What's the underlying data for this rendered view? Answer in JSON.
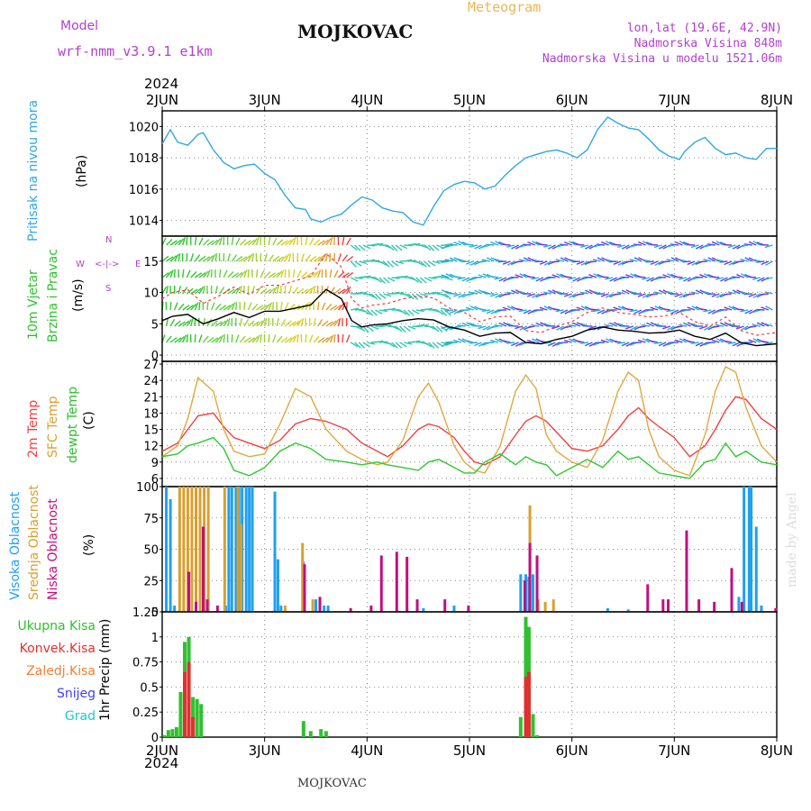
{
  "header": {
    "model_label": "Model",
    "model_name": "wrf-nmm_v3.9.1  e1km",
    "station": "MOJKOVAC",
    "meteogram_label": "Meteogram",
    "lonlat": "lon,lat (19.6E, 42.9N)",
    "elevation": "Nadmorska Visina 848m",
    "model_elevation": "Nadmorska Visina u modelu 1521.06m",
    "credit": "made by Angel",
    "footer_station": "MOJKOVAC"
  },
  "time_axis": {
    "year": "2024",
    "ticks": [
      "2JUN",
      "3JUN",
      "4JUN",
      "5JUN",
      "6JUN",
      "7JUN",
      "8JUN"
    ],
    "range_days": [
      0,
      6
    ]
  },
  "labels": {
    "pressure": "Pritisak na nivou mora",
    "pressure_unit": "(hPa)",
    "wind1": "10m Vjetar",
    "wind2": "Brzina i Pravac",
    "wind_unit": "(m/s)",
    "compass": {
      "n": "N",
      "s": "S",
      "e": "E",
      "w": "W"
    },
    "temp1": "2m Temp",
    "temp2": "SFC Temp",
    "temp3": "dewpt Temp",
    "temp_unit": "(C)",
    "cloud1": "Visoka Oblacnost",
    "cloud2": "Srednja Oblacnost",
    "cloud3": "Niska Oblacnost",
    "cloud_unit": "(%)",
    "precip_legend": [
      "Ukupna Kisa",
      "Konvek.Kisa",
      "Zaledj.Kisa",
      "Snijeg",
      "Grad"
    ],
    "precip_unit": "1hr Precip (mm)"
  },
  "colors": {
    "pressure": "#30a8e0",
    "temp2m": "#f04040",
    "sfc": "#e0a840",
    "dewpt": "#30c830",
    "gust": "#f04040",
    "speed": "#000000",
    "cloud_high": "#20a0f0",
    "cloud_mid": "#d8a030",
    "cloud_low": "#c01080",
    "precip_total": "#30c030",
    "precip_conv": "#e03030",
    "precip_frz": "#f08030",
    "snow": "#4040f0",
    "hail": "#20c8c8"
  },
  "chart_data": [
    {
      "type": "line",
      "panel": "pressure",
      "ylabel": "(hPa)",
      "ylim": [
        1013,
        1021
      ],
      "yticks": [
        1014,
        1016,
        1018,
        1020
      ],
      "series": [
        {
          "name": "Pritisak na nivou mora",
          "x": [
            0,
            0.08,
            0.15,
            0.25,
            0.35,
            0.4,
            0.5,
            0.6,
            0.7,
            0.8,
            0.9,
            1.0,
            1.1,
            1.2,
            1.3,
            1.4,
            1.45,
            1.55,
            1.65,
            1.75,
            1.85,
            1.95,
            2.05,
            2.15,
            2.25,
            2.35,
            2.45,
            2.55,
            2.65,
            2.75,
            2.85,
            2.95,
            3.05,
            3.15,
            3.25,
            3.35,
            3.45,
            3.55,
            3.65,
            3.75,
            3.85,
            3.95,
            4.05,
            4.15,
            4.25,
            4.35,
            4.45,
            4.55,
            4.65,
            4.75,
            4.85,
            4.95,
            5.05,
            5.1,
            5.2,
            5.3,
            5.4,
            5.5,
            5.6,
            5.7,
            5.8,
            5.9,
            6.0
          ],
          "values": [
            1018.9,
            1019.8,
            1019.0,
            1018.8,
            1019.5,
            1019.6,
            1018.5,
            1017.7,
            1017.3,
            1017.5,
            1017.6,
            1017.0,
            1016.6,
            1015.6,
            1014.8,
            1014.7,
            1014.1,
            1013.9,
            1014.2,
            1014.4,
            1015.0,
            1015.5,
            1015.3,
            1014.8,
            1014.6,
            1014.5,
            1013.9,
            1013.7,
            1014.9,
            1015.9,
            1016.3,
            1016.5,
            1016.4,
            1016.0,
            1016.2,
            1016.9,
            1017.5,
            1018.0,
            1018.2,
            1018.4,
            1018.5,
            1018.3,
            1018.0,
            1018.5,
            1019.8,
            1020.6,
            1020.2,
            1019.9,
            1019.8,
            1019.2,
            1018.5,
            1018.1,
            1017.9,
            1018.4,
            1019.0,
            1019.3,
            1018.6,
            1018.2,
            1018.3,
            1018.0,
            1017.9,
            1018.6,
            1018.6
          ],
          "color_key": "pressure"
        }
      ]
    },
    {
      "type": "line",
      "panel": "wind",
      "ylabel": "(m/s)",
      "ylim": [
        -1,
        19
      ],
      "yticks": [
        0,
        5,
        10,
        15
      ],
      "series": [
        {
          "name": "10m Vjetar",
          "x": [
            0,
            0.1,
            0.25,
            0.4,
            0.55,
            0.7,
            0.85,
            1.0,
            1.15,
            1.3,
            1.45,
            1.6,
            1.75,
            1.85,
            1.95,
            2.05,
            2.2,
            2.35,
            2.5,
            2.65,
            2.8,
            2.95,
            3.1,
            3.25,
            3.4,
            3.55,
            3.7,
            3.85,
            4.0,
            4.15,
            4.3,
            4.45,
            4.6,
            4.75,
            4.9,
            5.05,
            5.2,
            5.35,
            5.5,
            5.65,
            5.8,
            6.0
          ],
          "values": [
            5.5,
            6.2,
            6.5,
            5.0,
            5.8,
            6.8,
            6.0,
            7.0,
            7.0,
            7.5,
            8.0,
            10.5,
            9.0,
            5.5,
            4.5,
            4.8,
            5.0,
            5.5,
            5.8,
            5.6,
            4.5,
            4.0,
            3.0,
            3.5,
            3.6,
            2.0,
            1.8,
            2.5,
            3.0,
            4.0,
            4.5,
            4.0,
            3.8,
            3.5,
            3.6,
            4.0,
            3.0,
            2.5,
            3.5,
            2.0,
            1.5,
            1.8
          ],
          "color_key": "speed"
        }
      ]
    },
    {
      "type": "line",
      "panel": "temperature",
      "ylabel": "(C)",
      "ylim": [
        4.5,
        27.5
      ],
      "yticks": [
        6,
        9,
        12,
        15,
        18,
        21,
        24,
        27
      ],
      "series": [
        {
          "name": "2m Temp",
          "x": [
            0,
            0.15,
            0.25,
            0.35,
            0.5,
            0.6,
            0.7,
            0.85,
            1.0,
            1.15,
            1.3,
            1.45,
            1.6,
            1.8,
            1.95,
            2.1,
            2.2,
            2.35,
            2.5,
            2.6,
            2.7,
            2.85,
            2.95,
            3.05,
            3.15,
            3.3,
            3.45,
            3.55,
            3.65,
            3.75,
            3.85,
            4.0,
            4.15,
            4.3,
            4.45,
            4.55,
            4.65,
            4.75,
            4.85,
            5.0,
            5.15,
            5.3,
            5.4,
            5.5,
            5.6,
            5.7,
            5.85,
            6.0
          ],
          "values": [
            11.0,
            12.5,
            15.0,
            17.5,
            18.0,
            15.5,
            13.5,
            12.5,
            11.5,
            13.0,
            16.0,
            17.0,
            16.5,
            15.0,
            12.5,
            11.0,
            10.0,
            12.0,
            15.0,
            16.0,
            15.5,
            13.5,
            11.0,
            9.0,
            8.5,
            10.0,
            14.0,
            16.5,
            17.5,
            16.5,
            14.5,
            11.5,
            11.0,
            12.0,
            15.0,
            17.5,
            19.0,
            17.0,
            15.5,
            13.5,
            10.0,
            12.0,
            15.0,
            18.5,
            21.0,
            20.5,
            17.0,
            15.0
          ],
          "color_key": "temp2m"
        },
        {
          "name": "SFC Temp",
          "x": [
            0,
            0.15,
            0.25,
            0.35,
            0.5,
            0.6,
            0.7,
            0.85,
            1.0,
            1.15,
            1.3,
            1.45,
            1.6,
            1.8,
            1.95,
            2.1,
            2.2,
            2.35,
            2.5,
            2.6,
            2.7,
            2.85,
            2.95,
            3.05,
            3.15,
            3.3,
            3.45,
            3.55,
            3.65,
            3.75,
            3.85,
            4.0,
            4.15,
            4.3,
            4.45,
            4.55,
            4.65,
            4.75,
            4.85,
            5.0,
            5.15,
            5.3,
            5.4,
            5.5,
            5.6,
            5.7,
            5.85,
            6.0
          ],
          "values": [
            10.0,
            12.0,
            17.0,
            24.5,
            22.0,
            15.0,
            11.0,
            10.0,
            10.5,
            16.0,
            22.5,
            21.0,
            15.0,
            11.0,
            9.5,
            8.5,
            9.0,
            13.0,
            21.0,
            23.5,
            20.0,
            12.0,
            9.0,
            7.5,
            7.0,
            12.0,
            22.0,
            25.0,
            22.5,
            14.0,
            11.0,
            9.0,
            8.0,
            13.0,
            22.0,
            25.5,
            24.0,
            15.0,
            10.0,
            7.5,
            6.5,
            14.0,
            22.0,
            26.5,
            25.5,
            19.0,
            12.0,
            9.0
          ],
          "color_key": "sfc"
        },
        {
          "name": "dewpt Temp",
          "x": [
            0,
            0.15,
            0.25,
            0.35,
            0.5,
            0.6,
            0.7,
            0.85,
            1.0,
            1.15,
            1.3,
            1.45,
            1.6,
            1.8,
            1.95,
            2.1,
            2.2,
            2.35,
            2.5,
            2.6,
            2.7,
            2.85,
            2.95,
            3.05,
            3.15,
            3.3,
            3.45,
            3.55,
            3.65,
            3.75,
            3.85,
            4.0,
            4.15,
            4.3,
            4.45,
            4.55,
            4.65,
            4.75,
            4.85,
            5.0,
            5.15,
            5.3,
            5.4,
            5.5,
            5.6,
            5.7,
            5.85,
            6.0
          ],
          "values": [
            10.0,
            10.5,
            12.0,
            12.5,
            13.5,
            11.5,
            7.5,
            6.5,
            8.0,
            11.0,
            12.5,
            11.5,
            9.5,
            9.0,
            8.5,
            9.0,
            8.5,
            8.0,
            7.5,
            9.0,
            9.5,
            8.0,
            7.0,
            7.0,
            9.0,
            10.5,
            8.5,
            10.0,
            9.0,
            8.5,
            6.5,
            8.0,
            9.5,
            8.0,
            11.0,
            9.5,
            10.0,
            8.5,
            7.0,
            6.5,
            6.0,
            9.0,
            9.5,
            12.5,
            10.0,
            11.0,
            9.0,
            8.5
          ],
          "color_key": "dewpt"
        }
      ]
    },
    {
      "type": "bar",
      "panel": "clouds",
      "ylabel": "(%)",
      "ylim": [
        0,
        100
      ],
      "yticks": [
        0,
        25,
        50,
        75,
        100
      ],
      "series": [
        {
          "name": "Visoka Oblacnost",
          "color_key": "cloud_high",
          "x": [
            0.04,
            0.08,
            0.12,
            0.62,
            0.65,
            0.68,
            0.72,
            0.75,
            0.78,
            0.82,
            0.85,
            0.88,
            1.1,
            1.13,
            1.16,
            1.38,
            1.5,
            1.54,
            1.58,
            1.62,
            2.55,
            2.85,
            3.5,
            3.55,
            3.58,
            3.62,
            4.35,
            4.55,
            5.63,
            5.68,
            5.73,
            5.75,
            5.8,
            5.85
          ],
          "values": [
            100,
            90,
            5,
            5,
            100,
            100,
            100,
            100,
            100,
            100,
            100,
            100,
            96,
            42,
            5,
            40,
            10,
            10,
            5,
            5,
            3,
            5,
            30,
            30,
            28,
            30,
            3,
            2,
            12,
            100,
            100,
            100,
            68,
            5
          ]
        },
        {
          "name": "Srednja Oblacnost",
          "color_key": "cloud_mid",
          "x": [
            0.15,
            0.19,
            0.23,
            0.27,
            0.31,
            0.35,
            0.39,
            0.43,
            0.59,
            0.72,
            0.75,
            1.18,
            1.35,
            1.45,
            3.57,
            3.65,
            3.72,
            3.8
          ],
          "values": [
            100,
            100,
            100,
            100,
            100,
            100,
            100,
            100,
            100,
            100,
            70,
            5,
            55,
            10,
            85,
            10,
            8,
            10
          ],
          "offset": 0.02
        },
        {
          "name": "Niska Oblacnost",
          "color_key": "cloud_low",
          "x": [
            0.22,
            0.29,
            0.36,
            0.4,
            0.5,
            1.35,
            1.5,
            1.8,
            2.0,
            2.1,
            2.25,
            2.35,
            2.45,
            2.72,
            2.95,
            3.5,
            3.55,
            3.62,
            4.7,
            4.85,
            4.9,
            5.08,
            5.2,
            5.35,
            5.52,
            5.62,
            5.95
          ],
          "values": [
            32,
            8,
            68,
            10,
            5,
            38,
            12,
            3,
            5,
            45,
            48,
            44,
            10,
            10,
            5,
            25,
            55,
            45,
            22,
            10,
            10,
            65,
            10,
            8,
            35,
            8,
            3
          ],
          "offset": 0.04
        }
      ]
    },
    {
      "type": "bar",
      "panel": "precipitation",
      "ylabel": "1hr Precip (mm)",
      "ylim": [
        0,
        1.25
      ],
      "yticks": [
        0,
        0.25,
        0.5,
        0.75,
        1,
        1.25
      ],
      "series": [
        {
          "name": "Ukupna Kisa",
          "color_key": "precip_total",
          "x": [
            0.02,
            0.06,
            0.1,
            0.14,
            0.18,
            0.22,
            0.26,
            0.3,
            0.34,
            0.38,
            1.38,
            1.45,
            1.55,
            1.6,
            3.5,
            3.55,
            3.58,
            3.62,
            3.66
          ],
          "values": [
            0.02,
            0.07,
            0.08,
            0.1,
            0.45,
            0.95,
            1.0,
            0.4,
            0.38,
            0.33,
            0.16,
            0.06,
            0.08,
            0.06,
            0.2,
            1.2,
            1.1,
            0.23,
            0.02
          ]
        },
        {
          "name": "Konvek.Kisa",
          "color_key": "precip_conv",
          "x": [
            0.22,
            0.26,
            0.3,
            3.55,
            3.58
          ],
          "values": [
            0.65,
            0.75,
            0.2,
            0.6,
            0.65
          ]
        }
      ]
    }
  ]
}
